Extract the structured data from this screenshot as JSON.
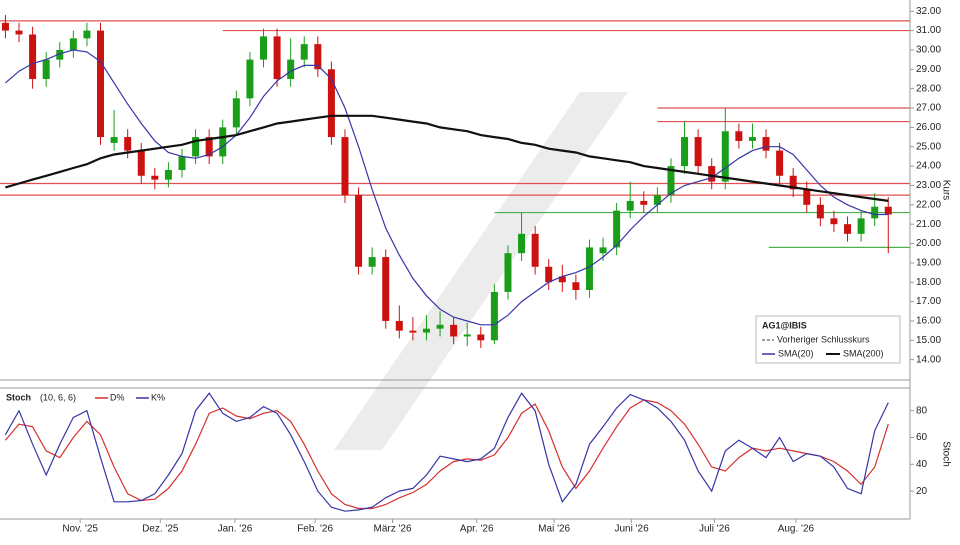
{
  "chart_data": [
    {
      "type": "candlestick",
      "title": "AG1@IBIS",
      "ylabel": "Kurs",
      "legend_note": "Vorheriger Schlusskurs",
      "xlim": [
        -0.4,
        66.6
      ],
      "ylim": [
        12.95,
        32.58
      ],
      "grid": false,
      "up_color": "#1a9e1a",
      "down_color": "#cc1111",
      "yticks": [
        {
          "value": 14,
          "label": "14.00"
        },
        {
          "value": 15,
          "label": "15.00"
        },
        {
          "value": 16,
          "label": "16.00"
        },
        {
          "value": 17,
          "label": "17.00"
        },
        {
          "value": 18,
          "label": "18.00"
        },
        {
          "value": 19,
          "label": "19.00"
        },
        {
          "value": 20,
          "label": "20.00"
        },
        {
          "value": 21,
          "label": "21.00"
        },
        {
          "value": 22,
          "label": "22.00"
        },
        {
          "value": 23,
          "label": "23.00"
        },
        {
          "value": 24,
          "label": "24.00"
        },
        {
          "value": 25,
          "label": "25.00"
        },
        {
          "value": 26,
          "label": "26.00"
        },
        {
          "value": 27,
          "label": "27.00"
        },
        {
          "value": 28,
          "label": "28.00"
        },
        {
          "value": 29,
          "label": "29.00"
        },
        {
          "value": 30,
          "label": "30.00"
        },
        {
          "value": 31,
          "label": "31.00"
        },
        {
          "value": 32,
          "label": "32.00"
        }
      ],
      "open": [
        31.4,
        31.0,
        30.8,
        28.5,
        29.5,
        30.0,
        30.6,
        31.0,
        25.2,
        25.5,
        24.8,
        23.5,
        23.3,
        23.8,
        24.5,
        25.5,
        24.5,
        26.0,
        27.5,
        29.5,
        30.7,
        28.5,
        29.5,
        30.3,
        29.0,
        25.5,
        22.5,
        18.8,
        19.3,
        16.0,
        15.5,
        15.4,
        15.6,
        15.8,
        15.2,
        15.3,
        15.0,
        17.5,
        19.5,
        20.5,
        18.8,
        18.3,
        18.0,
        17.6,
        19.5,
        19.8,
        21.7,
        22.2,
        22.0,
        22.5,
        24.0,
        25.5,
        24.0,
        23.2,
        25.8,
        25.3,
        25.5,
        24.8,
        23.5,
        22.8,
        22.0,
        21.3,
        21.0,
        20.5,
        21.3,
        21.9
      ],
      "high": [
        31.8,
        31.4,
        31.2,
        29.9,
        30.4,
        31.0,
        31.4,
        31.4,
        26.9,
        25.9,
        25.2,
        23.9,
        24.2,
        24.9,
        25.9,
        25.9,
        26.4,
        27.9,
        29.9,
        31.1,
        31.1,
        30.6,
        30.7,
        30.7,
        29.4,
        25.9,
        22.9,
        19.8,
        19.7,
        16.8,
        16.2,
        16.3,
        16.5,
        16.2,
        15.9,
        15.7,
        17.9,
        19.9,
        21.6,
        20.9,
        19.2,
        18.9,
        18.4,
        20.2,
        20.3,
        22.1,
        23.2,
        22.7,
        22.9,
        24.4,
        26.3,
        25.9,
        24.4,
        27.0,
        26.2,
        26.2,
        25.9,
        25.2,
        23.9,
        23.2,
        22.4,
        21.7,
        21.4,
        21.7,
        22.6,
        22.4
      ],
      "low": [
        30.6,
        30.4,
        28.0,
        28.1,
        29.1,
        29.6,
        30.2,
        25.1,
        24.8,
        24.4,
        23.1,
        22.8,
        22.9,
        23.4,
        24.1,
        24.1,
        24.1,
        25.6,
        27.1,
        29.1,
        28.1,
        28.1,
        29.1,
        28.6,
        25.1,
        22.1,
        18.4,
        18.4,
        15.6,
        15.1,
        15.0,
        15.0,
        15.2,
        14.8,
        14.7,
        14.6,
        14.8,
        17.1,
        19.1,
        18.4,
        17.6,
        17.5,
        17.1,
        17.2,
        19.1,
        19.4,
        21.3,
        21.6,
        21.6,
        22.1,
        23.6,
        23.6,
        22.8,
        22.8,
        24.9,
        24.9,
        24.4,
        23.1,
        22.4,
        21.6,
        20.9,
        20.6,
        20.1,
        20.1,
        20.9,
        19.5
      ],
      "close": [
        31.0,
        30.8,
        28.5,
        29.5,
        30.0,
        30.6,
        31.0,
        25.5,
        25.5,
        24.8,
        23.5,
        23.3,
        23.8,
        24.5,
        25.5,
        24.5,
        26.0,
        27.5,
        29.5,
        30.7,
        28.5,
        29.5,
        30.3,
        29.0,
        25.5,
        22.5,
        18.8,
        19.3,
        16.0,
        15.5,
        15.4,
        15.6,
        15.8,
        15.2,
        15.3,
        15.0,
        17.5,
        19.5,
        20.5,
        18.8,
        18.0,
        18.0,
        17.6,
        19.8,
        19.8,
        21.7,
        22.2,
        22.0,
        22.5,
        24.0,
        25.5,
        24.0,
        23.2,
        25.8,
        25.3,
        25.5,
        24.8,
        23.5,
        22.8,
        22.0,
        21.3,
        21.0,
        20.5,
        21.3,
        21.9,
        21.5
      ],
      "series": [
        {
          "name": "SMA(20)",
          "color": "#3636a8",
          "values": [
            28.3,
            28.9,
            29.3,
            29.5,
            29.8,
            30.0,
            29.9,
            29.4,
            28.3,
            27.2,
            26.2,
            25.3,
            24.7,
            24.5,
            24.4,
            24.6,
            25.0,
            25.6,
            26.5,
            27.6,
            28.4,
            28.9,
            29.2,
            29.2,
            28.5,
            27.0,
            25.0,
            22.8,
            20.8,
            19.4,
            18.2,
            17.3,
            16.6,
            16.2,
            16.0,
            15.8,
            15.8,
            16.3,
            17.0,
            17.5,
            18.0,
            18.3,
            18.5,
            18.8,
            19.3,
            19.9,
            20.7,
            21.4,
            22.0,
            22.6,
            23.0,
            23.2,
            23.4,
            23.9,
            24.4,
            24.8,
            25.0,
            25.0,
            24.6,
            23.8,
            23.0,
            22.4,
            22.0,
            21.7,
            21.5,
            21.5
          ]
        },
        {
          "name": "SMA(200)",
          "color": "#111111",
          "values": [
            22.9,
            23.1,
            23.3,
            23.5,
            23.7,
            23.9,
            24.1,
            24.4,
            24.6,
            24.7,
            24.8,
            24.9,
            25.0,
            25.1,
            25.3,
            25.4,
            25.5,
            25.6,
            25.8,
            26.0,
            26.2,
            26.3,
            26.4,
            26.5,
            26.6,
            26.6,
            26.6,
            26.6,
            26.5,
            26.4,
            26.3,
            26.2,
            26.0,
            25.9,
            25.8,
            25.6,
            25.5,
            25.4,
            25.2,
            25.1,
            24.9,
            24.8,
            24.7,
            24.5,
            24.4,
            24.3,
            24.2,
            24.0,
            23.9,
            23.8,
            23.7,
            23.6,
            23.5,
            23.4,
            23.3,
            23.2,
            23.1,
            23.0,
            22.9,
            22.8,
            22.7,
            22.6,
            22.5,
            22.4,
            22.3,
            22.2
          ]
        }
      ],
      "levels": [
        {
          "value": 31.5,
          "from": -0.4,
          "color": "#e05050"
        },
        {
          "value": 31.0,
          "from": 16,
          "color": "#e05050"
        },
        {
          "value": 27.0,
          "from": 48,
          "color": "#e05050"
        },
        {
          "value": 26.3,
          "from": 48,
          "color": "#e05050"
        },
        {
          "value": 23.1,
          "from": -0.4,
          "color": "#e05050"
        },
        {
          "value": 22.5,
          "from": -0.4,
          "color": "#e05050"
        },
        {
          "value": 21.6,
          "from": 36,
          "color": "#4caf4c"
        },
        {
          "value": 19.8,
          "from": 56.2,
          "color": "#4caf4c"
        }
      ]
    },
    {
      "type": "line",
      "title": "Stoch",
      "subtitle": "(10, 6, 6)",
      "ylabel": "Stoch",
      "xlim": [
        -0.4,
        66.6
      ],
      "ylim": [
        -0.8,
        96.9
      ],
      "yticks": [
        20,
        40,
        60,
        80
      ],
      "xticks": [
        {
          "value": 5.5,
          "label": "Nov. '25"
        },
        {
          "value": 11.4,
          "label": "Dez. '25"
        },
        {
          "value": 16.9,
          "label": "Jan. '26"
        },
        {
          "value": 22.8,
          "label": "Feb. '26"
        },
        {
          "value": 28.5,
          "label": "März '26"
        },
        {
          "value": 34.7,
          "label": "Apr. '26"
        },
        {
          "value": 40.4,
          "label": "Mai '26"
        },
        {
          "value": 46.1,
          "label": "Juni '26"
        },
        {
          "value": 52.2,
          "label": "Juli '26"
        },
        {
          "value": 58.2,
          "label": "Aug. '26"
        }
      ],
      "series": [
        {
          "name": "D%",
          "color": "#d63030",
          "values": [
            58,
            70,
            68,
            50,
            45,
            60,
            72,
            62,
            38,
            18,
            13,
            14,
            22,
            35,
            55,
            78,
            82,
            76,
            74,
            78,
            80,
            72,
            55,
            35,
            18,
            10,
            7,
            7,
            10,
            15,
            19,
            25,
            35,
            42,
            44,
            43,
            47,
            60,
            78,
            85,
            65,
            38,
            22,
            35,
            52,
            68,
            82,
            88,
            86,
            80,
            70,
            55,
            38,
            35,
            45,
            52,
            50,
            52,
            50,
            48,
            46,
            42,
            35,
            25,
            38,
            70
          ]
        },
        {
          "name": "K%",
          "color": "#3636a8",
          "values": [
            62,
            80,
            55,
            32,
            55,
            75,
            80,
            45,
            12,
            12,
            13,
            18,
            32,
            48,
            80,
            93,
            78,
            72,
            75,
            83,
            78,
            62,
            42,
            20,
            8,
            5,
            6,
            8,
            15,
            20,
            22,
            32,
            46,
            44,
            42,
            44,
            52,
            75,
            93,
            80,
            40,
            12,
            25,
            55,
            68,
            82,
            92,
            88,
            82,
            72,
            58,
            35,
            20,
            50,
            58,
            52,
            45,
            60,
            42,
            48,
            46,
            38,
            22,
            18,
            65,
            86
          ]
        }
      ]
    }
  ]
}
